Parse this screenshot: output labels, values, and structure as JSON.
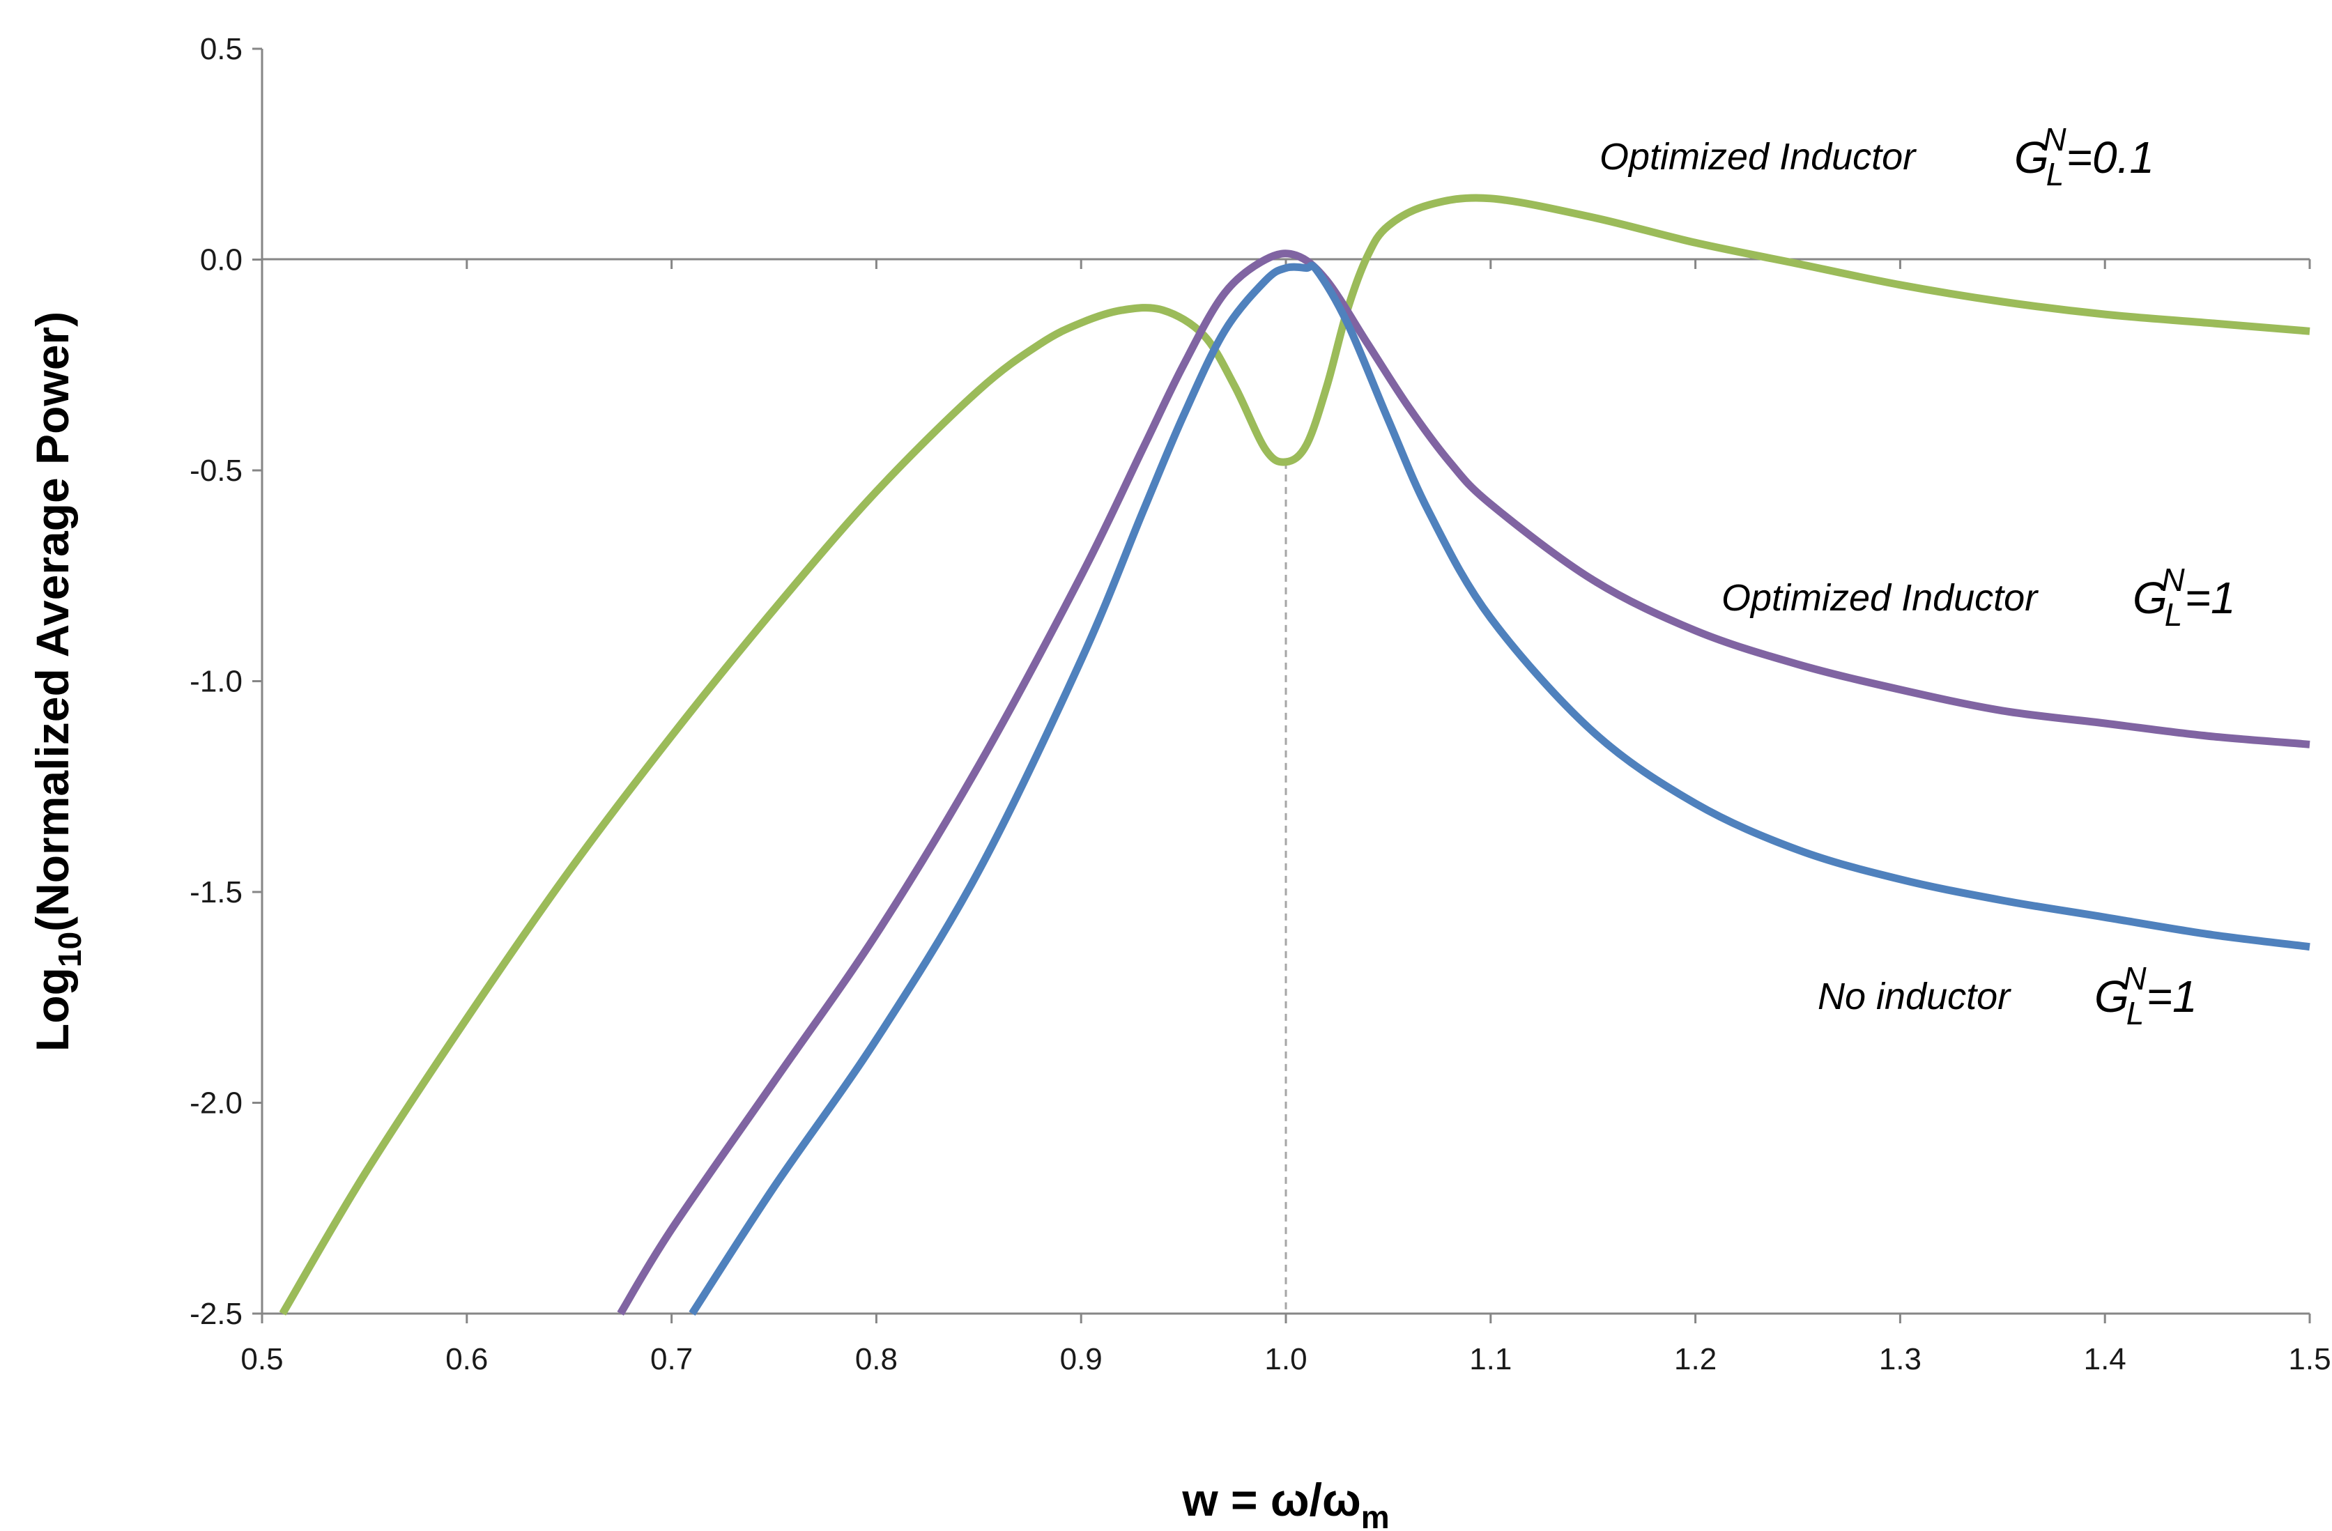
{
  "chart_data": {
    "type": "line",
    "title": "",
    "xlabel": {
      "prefix": "w = ω/ω",
      "sub": "m"
    },
    "ylabel": {
      "prefix": "Log",
      "sub": "10",
      "suffix": "(Normalized Average Power)"
    },
    "xlim": [
      0.5,
      1.5
    ],
    "ylim": [
      -2.5,
      0.5
    ],
    "xticks": [
      0.5,
      0.6,
      0.7,
      0.8,
      0.9,
      1.0,
      1.1,
      1.2,
      1.3,
      1.4,
      1.5
    ],
    "xtick_labels": [
      "0.5",
      "0.6",
      "0.7",
      "0.8",
      "0.9",
      "1.0",
      "1.1",
      "1.2",
      "1.3",
      "1.4",
      "1.5"
    ],
    "yticks": [
      0.5,
      0.0,
      -0.5,
      -1.0,
      -1.5,
      -2.0,
      -2.5
    ],
    "ytick_labels": [
      "0.5",
      "0.0",
      "-0.5",
      "-1.0",
      "-1.5",
      "-2.0",
      "-2.5"
    ],
    "grid": false,
    "reference_line": {
      "x": 1.0,
      "style": "dashed",
      "color": "#a6a6a6",
      "y_top": -0.48
    },
    "series": [
      {
        "name": "Optimized Inductor G_L^N=0.1",
        "color": "#9bbb59",
        "x": [
          0.51,
          0.55,
          0.6,
          0.65,
          0.7,
          0.75,
          0.8,
          0.85,
          0.88,
          0.9,
          0.92,
          0.94,
          0.96,
          0.975,
          0.99,
          1.0,
          1.01,
          1.02,
          1.03,
          1.04,
          1.05,
          1.07,
          1.1,
          1.15,
          1.2,
          1.25,
          1.3,
          1.35,
          1.4,
          1.45,
          1.5
        ],
        "y": [
          -2.5,
          -2.17,
          -1.8,
          -1.45,
          -1.13,
          -0.83,
          -0.55,
          -0.31,
          -0.2,
          -0.15,
          -0.12,
          -0.12,
          -0.18,
          -0.3,
          -0.45,
          -0.48,
          -0.44,
          -0.3,
          -0.12,
          0.01,
          0.08,
          0.13,
          0.145,
          0.1,
          0.04,
          -0.01,
          -0.06,
          -0.1,
          -0.13,
          -0.15,
          -0.17
        ]
      },
      {
        "name": "Optimized Inductor G_L^N=1",
        "color": "#8064a2",
        "x": [
          0.675,
          0.7,
          0.75,
          0.8,
          0.85,
          0.9,
          0.93,
          0.95,
          0.97,
          0.99,
          1.005,
          1.02,
          1.04,
          1.06,
          1.08,
          1.1,
          1.15,
          1.2,
          1.25,
          1.3,
          1.35,
          1.4,
          1.45,
          1.5
        ],
        "y": [
          -2.5,
          -2.3,
          -1.95,
          -1.6,
          -1.2,
          -0.75,
          -0.45,
          -0.25,
          -0.08,
          0.0,
          0.01,
          -0.05,
          -0.2,
          -0.35,
          -0.48,
          -0.58,
          -0.76,
          -0.88,
          -0.96,
          -1.02,
          -1.07,
          -1.1,
          -1.13,
          -1.15
        ]
      },
      {
        "name": "No inductor G_L^N=1",
        "color": "#4f81bd",
        "x": [
          0.71,
          0.75,
          0.8,
          0.85,
          0.9,
          0.93,
          0.95,
          0.97,
          0.99,
          1.0,
          1.01,
          1.015,
          1.03,
          1.05,
          1.07,
          1.1,
          1.15,
          1.2,
          1.25,
          1.3,
          1.35,
          1.4,
          1.45,
          1.5
        ],
        "y": [
          -2.5,
          -2.2,
          -1.85,
          -1.45,
          -0.95,
          -0.6,
          -0.37,
          -0.17,
          -0.05,
          -0.02,
          -0.02,
          -0.025,
          -0.15,
          -0.38,
          -0.6,
          -0.85,
          -1.12,
          -1.29,
          -1.4,
          -1.47,
          -1.52,
          -1.56,
          -1.6,
          -1.63
        ]
      }
    ],
    "annotations": [
      {
        "text": "Optimized Inductor",
        "g": "G",
        "sup": "N",
        "sub": "L",
        "value": "=0.1",
        "series": 0
      },
      {
        "text": "Optimized Inductor",
        "g": "G",
        "sup": "N",
        "sub": "L",
        "value": "=1",
        "series": 1
      },
      {
        "text": "No inductor",
        "g": "G",
        "sup": "N",
        "sub": "L",
        "value": "=1",
        "series": 2
      }
    ]
  }
}
